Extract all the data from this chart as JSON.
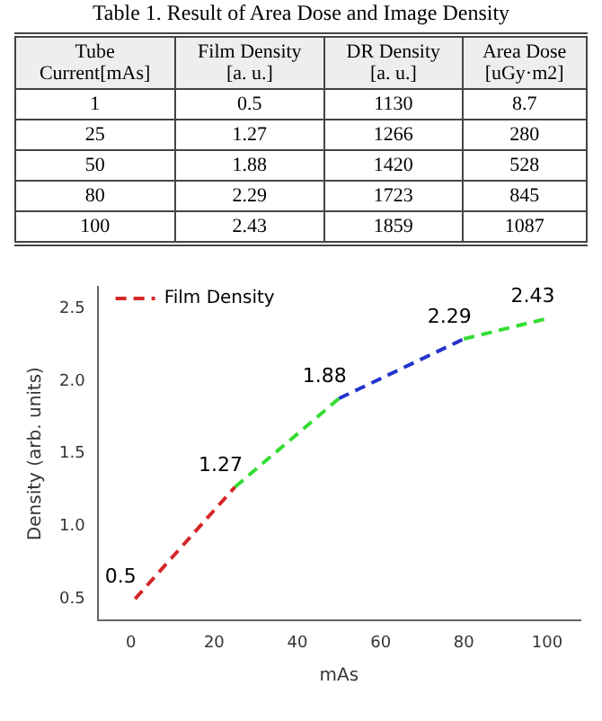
{
  "chart_data": [
    {
      "type": "other",
      "title": "Table 1. Result of Area Dose and Image Density",
      "categories": [
        "Tube\nCurrent[mAs]",
        "Film Density\n[a. u.]",
        "DR Density\n[a. u.]",
        "Area Dose\n[uGy·m2]"
      ],
      "annotations": [
        "1",
        "0.5",
        "1130",
        "8.7",
        "25",
        "1.27",
        "1266",
        "280",
        "50",
        "1.88",
        "1420",
        "528",
        "80",
        "2.29",
        "1723",
        "845",
        "100",
        "2.43",
        "1859",
        "1087"
      ]
    },
    {
      "type": "line",
      "xlabel": "mAs",
      "ylabel": "Density (arb. units)",
      "series": [
        {
          "name": "Film Density",
          "color": "#d62728",
          "x": [
            1,
            25
          ],
          "values": [
            0.5,
            1.27
          ],
          "value_labels": [
            "0.5",
            "1.27"
          ]
        },
        {
          "color": "#33dd33",
          "x": [
            25,
            50
          ],
          "values": [
            1.27,
            1.88
          ],
          "value_labels": [
            null,
            "1.88"
          ]
        },
        {
          "color": "#2233cc",
          "x": [
            50,
            80
          ],
          "values": [
            1.88,
            2.29
          ],
          "value_labels": [
            null,
            "2.29"
          ]
        },
        {
          "color": "#33dd33",
          "x": [
            80,
            100
          ],
          "values": [
            2.29,
            2.43
          ],
          "value_labels": [
            null,
            "2.43"
          ]
        }
      ],
      "xlim": [
        -8,
        108
      ],
      "xticks": [
        0,
        20,
        40,
        60,
        80,
        100
      ],
      "ylim": [
        0.35,
        2.65
      ],
      "yticks": [
        {
          "value": 0.5,
          "label": "0.5"
        },
        {
          "value": 1,
          "label": "1.0"
        },
        {
          "value": 1.5,
          "label": "1.5"
        },
        {
          "value": 2,
          "label": "2.0"
        },
        {
          "value": 2.5,
          "label": "2.5"
        }
      ],
      "grid": false,
      "legend": "top left",
      "line_style": "dashed",
      "marker": "none"
    }
  ]
}
